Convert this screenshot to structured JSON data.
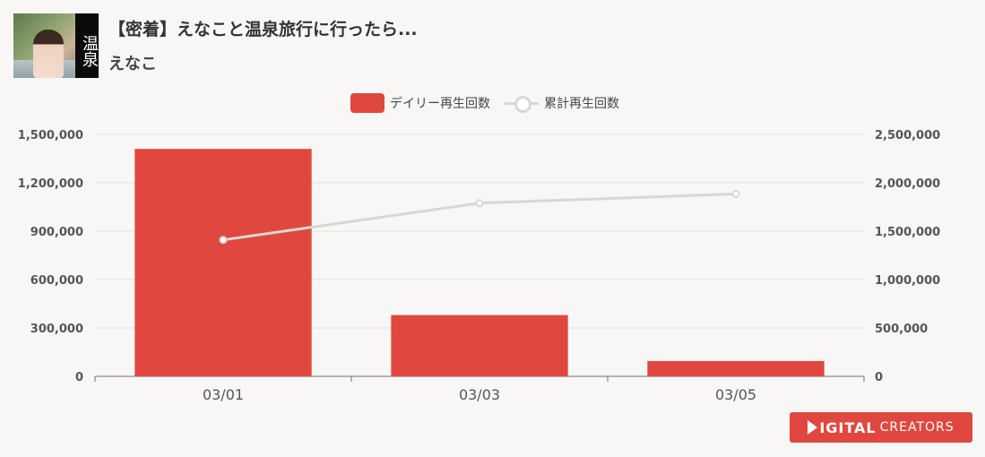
{
  "header": {
    "title": "【密着】えなこと温泉旅行に行ったら...",
    "subtitle": "えなこ",
    "thumbnail_text": "温泉"
  },
  "legend": {
    "bar_label": "デイリー再生回数",
    "line_label": "累計再生回数"
  },
  "badge": {
    "text_a": "IGITAL",
    "text_b": "CREATORS"
  },
  "colors": {
    "bar": "#e0483f",
    "line": "#d9d7d4",
    "grid": "#dfe4ef",
    "axis": "#6e7079",
    "badge": "#e0483f"
  },
  "chart_data": {
    "type": "bar",
    "categories": [
      "03/01",
      "03/03",
      "03/05"
    ],
    "series": [
      {
        "name": "デイリー再生回数",
        "type": "bar",
        "axis": "left",
        "values": [
          1410000,
          380000,
          95000
        ]
      },
      {
        "name": "累計再生回数",
        "type": "line",
        "axis": "right",
        "values": [
          1410000,
          1790000,
          1885000
        ]
      }
    ],
    "y_left": {
      "ticks": [
        "0",
        "300,000",
        "600,000",
        "900,000",
        "1,200,000",
        "1,500,000"
      ],
      "ylim": [
        0,
        1500000
      ]
    },
    "y_right": {
      "ticks": [
        "0",
        "500,000",
        "1,000,000",
        "1,500,000",
        "2,000,000",
        "2,500,000"
      ],
      "ylim": [
        0,
        2500000
      ]
    },
    "grid": true,
    "legend_position": "top-center"
  }
}
